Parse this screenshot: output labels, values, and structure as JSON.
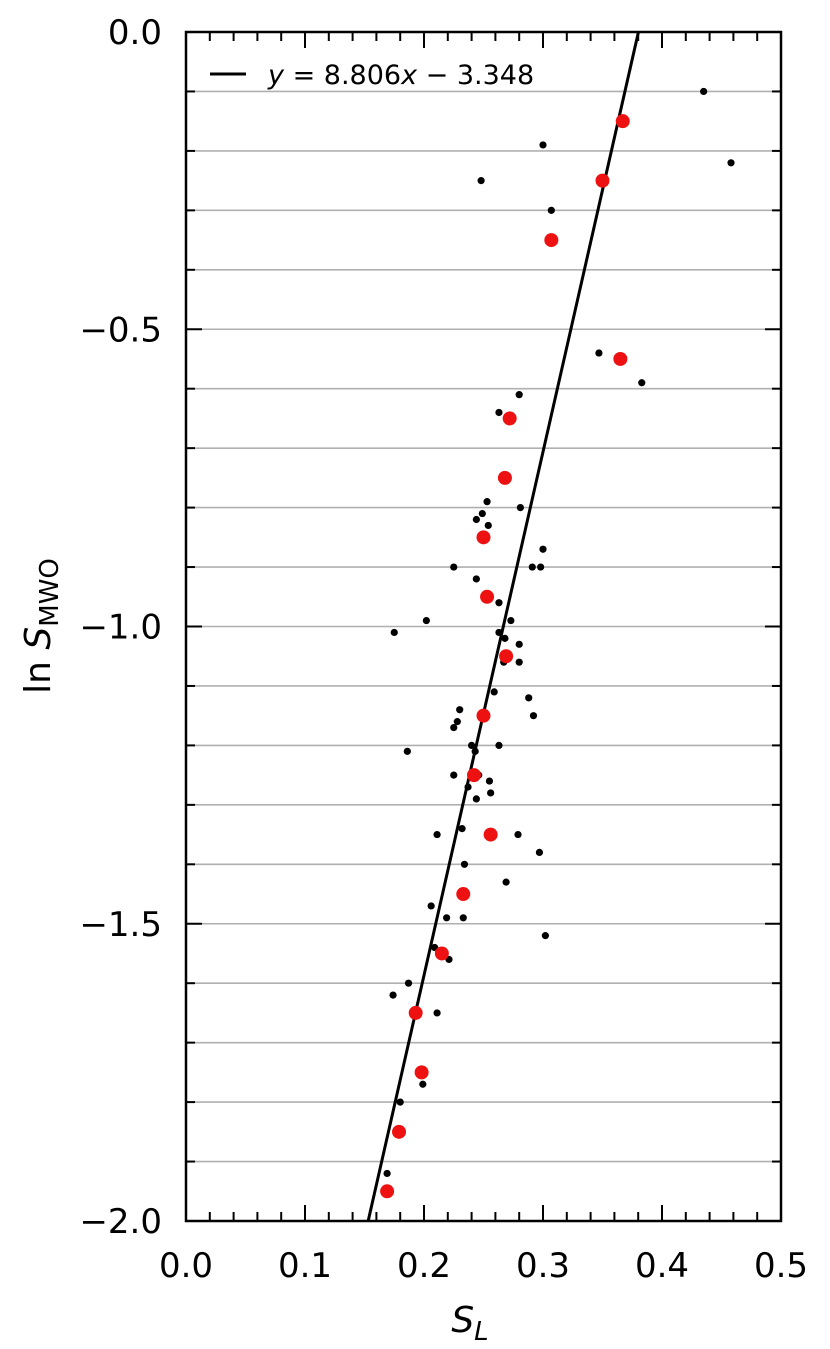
{
  "chart_data": {
    "type": "scatter",
    "xlabel": {
      "main": "S",
      "sub": "L"
    },
    "ylabel": {
      "main": "ln S",
      "sub": "MWO"
    },
    "xlim": [
      0.0,
      0.5
    ],
    "ylim": [
      -2.0,
      0.0
    ],
    "x_ticks": [
      "0.0",
      "0.1",
      "0.2",
      "0.3",
      "0.4",
      "0.5"
    ],
    "y_ticks": [
      "0.0",
      "−0.5",
      "−1.0",
      "−1.5",
      "−2.0"
    ],
    "grid": "horizontal lines every 0.1",
    "legend": {
      "placement": "top-left",
      "entries": [
        {
          "prefix": "y",
          "text": " = 8.806",
          "var": "x",
          "suffix": " − 3.348"
        }
      ]
    },
    "fit_line": {
      "slope": 8.806,
      "intercept": -3.348,
      "color": "#000000"
    },
    "series": [
      {
        "color": "#000000",
        "marker": "small-dot",
        "x": [
          0.435,
          0.3,
          0.248,
          0.458,
          0.307,
          0.347,
          0.383,
          0.28,
          0.263,
          0.281,
          0.253,
          0.249,
          0.244,
          0.254,
          0.25,
          0.3,
          0.225,
          0.291,
          0.298,
          0.244,
          0.263,
          0.202,
          0.273,
          0.175,
          0.263,
          0.268,
          0.28,
          0.267,
          0.28,
          0.259,
          0.288,
          0.23,
          0.228,
          0.225,
          0.292,
          0.24,
          0.263,
          0.243,
          0.186,
          0.225,
          0.255,
          0.246,
          0.237,
          0.256,
          0.244,
          0.232,
          0.211,
          0.279,
          0.297,
          0.234,
          0.269,
          0.206,
          0.233,
          0.219,
          0.302,
          0.209,
          0.221,
          0.187,
          0.174,
          0.211,
          0.199,
          0.18,
          0.169
        ],
        "y": [
          -0.1,
          -0.19,
          -0.25,
          -0.22,
          -0.3,
          -0.54,
          -0.59,
          -0.61,
          -0.64,
          -0.8,
          -0.79,
          -0.81,
          -0.82,
          -0.83,
          -0.85,
          -0.87,
          -0.9,
          -0.9,
          -0.9,
          -0.92,
          -0.96,
          -0.99,
          -0.99,
          -1.01,
          -1.01,
          -1.02,
          -1.03,
          -1.06,
          -1.06,
          -1.11,
          -1.12,
          -1.14,
          -1.16,
          -1.17,
          -1.15,
          -1.2,
          -1.2,
          -1.21,
          -1.21,
          -1.25,
          -1.26,
          -1.25,
          -1.27,
          -1.28,
          -1.29,
          -1.34,
          -1.35,
          -1.35,
          -1.38,
          -1.4,
          -1.43,
          -1.47,
          -1.49,
          -1.49,
          -1.52,
          -1.54,
          -1.56,
          -1.6,
          -1.62,
          -1.65,
          -1.77,
          -1.8,
          -1.92
        ]
      },
      {
        "color": "#ee1111",
        "marker": "large-dot",
        "x": [
          0.367,
          0.35,
          0.307,
          0.365,
          0.272,
          0.268,
          0.25,
          0.253,
          0.269,
          0.25,
          0.242,
          0.256,
          0.233,
          0.215,
          0.193,
          0.198,
          0.179,
          0.169
        ],
        "y": [
          -0.15,
          -0.25,
          -0.35,
          -0.55,
          -0.65,
          -0.75,
          -0.85,
          -0.95,
          -1.05,
          -1.15,
          -1.25,
          -1.35,
          -1.45,
          -1.55,
          -1.65,
          -1.75,
          -1.85,
          -1.95
        ]
      }
    ]
  }
}
